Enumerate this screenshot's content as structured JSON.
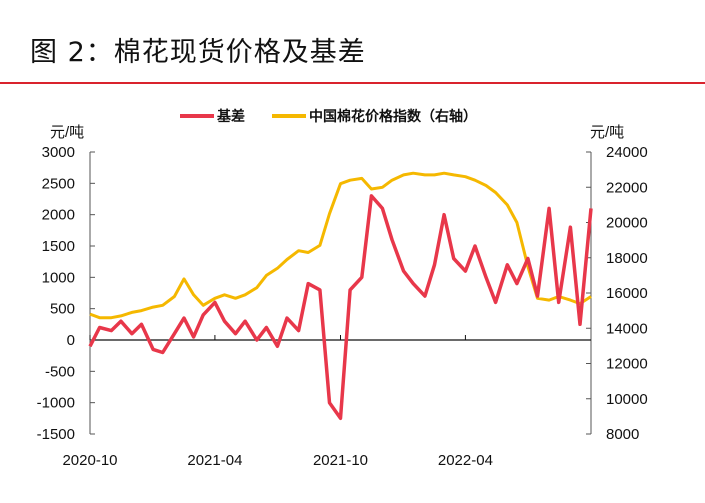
{
  "title": "图 2：棉花现货价格及基差",
  "chart_data": {
    "type": "line",
    "title": "图 2：棉花现货价格及基差",
    "left_axis": {
      "unit": "元/吨",
      "ylim": [
        -1500,
        3000
      ],
      "ticks": [
        3000,
        2500,
        2000,
        1500,
        1000,
        500,
        0,
        -500,
        -1000,
        -1500
      ]
    },
    "right_axis": {
      "unit": "元/吨",
      "ylim": [
        8000,
        24000
      ],
      "ticks": [
        24000,
        22000,
        20000,
        18000,
        16000,
        14000,
        12000,
        10000,
        8000
      ]
    },
    "x_ticks": [
      "2020-10",
      "2021-04",
      "2021-10",
      "2022-04"
    ],
    "x_range": [
      "2020-10-01",
      "2022-10-01"
    ],
    "legend_placement": "top-center",
    "grid": false,
    "x": [
      "2020-10-01",
      "2020-10-15",
      "2020-11-01",
      "2020-11-15",
      "2020-12-01",
      "2020-12-15",
      "2021-01-01",
      "2021-01-15",
      "2021-02-01",
      "2021-02-15",
      "2021-03-01",
      "2021-03-15",
      "2021-04-01",
      "2021-04-15",
      "2021-05-01",
      "2021-05-15",
      "2021-06-01",
      "2021-06-15",
      "2021-07-01",
      "2021-07-15",
      "2021-08-01",
      "2021-08-15",
      "2021-09-01",
      "2021-09-15",
      "2021-10-01",
      "2021-10-15",
      "2021-11-01",
      "2021-11-15",
      "2021-12-01",
      "2021-12-15",
      "2022-01-01",
      "2022-01-15",
      "2022-02-01",
      "2022-02-15",
      "2022-03-01",
      "2022-03-15",
      "2022-04-01",
      "2022-04-15",
      "2022-05-01",
      "2022-05-15",
      "2022-06-01",
      "2022-06-15",
      "2022-07-01",
      "2022-07-15",
      "2022-08-01",
      "2022-08-15",
      "2022-09-01",
      "2022-09-15",
      "2022-10-01"
    ],
    "series": [
      {
        "name": "基差",
        "axis": "left",
        "color": "#e8374a",
        "values": [
          -100,
          200,
          150,
          300,
          100,
          250,
          -150,
          -200,
          100,
          350,
          50,
          400,
          600,
          300,
          100,
          300,
          0,
          200,
          -100,
          350,
          150,
          900,
          800,
          -1000,
          -1250,
          800,
          1000,
          2300,
          2100,
          1600,
          1100,
          900,
          700,
          1200,
          2000,
          1300,
          1100,
          1500,
          1000,
          600,
          1200,
          900,
          1300,
          700,
          2100,
          600,
          1800,
          250,
          2100
        ]
      },
      {
        "name": "中国棉花价格指数（右轴）",
        "axis": "right",
        "color": "#f5b800",
        "values": [
          14800,
          14600,
          14600,
          14700,
          14900,
          15000,
          15200,
          15300,
          15800,
          16800,
          15900,
          15300,
          15700,
          15900,
          15700,
          15900,
          16300,
          17000,
          17400,
          17900,
          18400,
          18300,
          18700,
          20500,
          22200,
          22400,
          22500,
          21900,
          22000,
          22400,
          22700,
          22800,
          22700,
          22700,
          22800,
          22700,
          22600,
          22400,
          22100,
          21700,
          21000,
          20000,
          17500,
          15700,
          15600,
          15800,
          15600,
          15400,
          15800
        ]
      }
    ]
  }
}
